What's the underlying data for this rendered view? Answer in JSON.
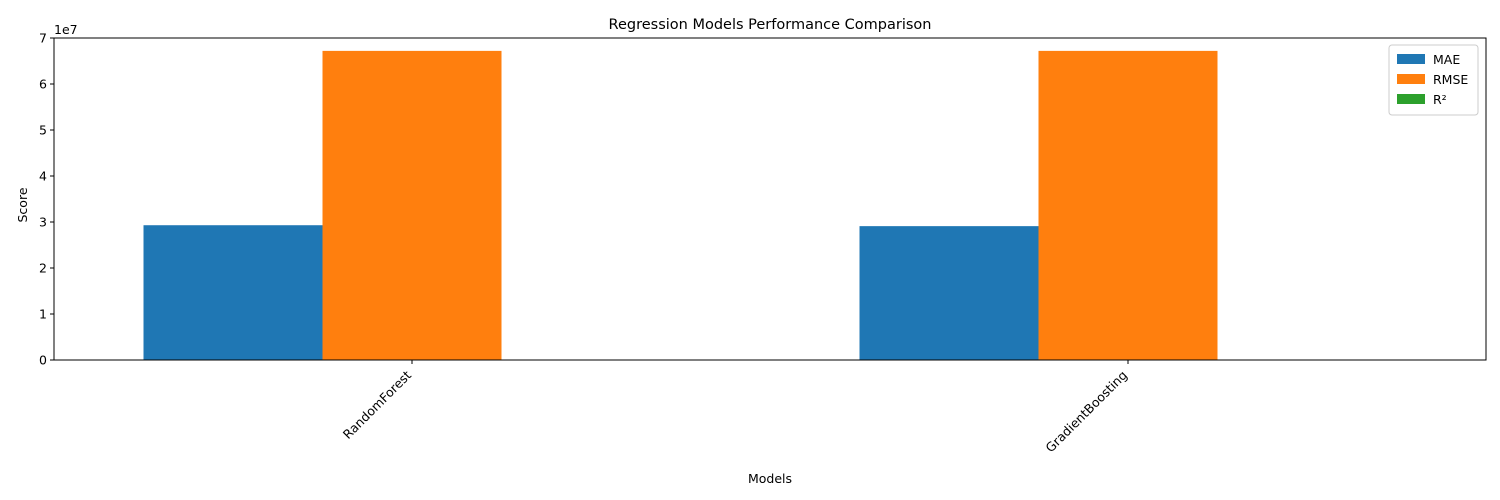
{
  "chart_data": {
    "type": "bar",
    "title": "Regression Models Performance Comparison",
    "xlabel": "Models",
    "ylabel": "Score",
    "y_offset_label": "1e7",
    "y_scale": 10000000,
    "categories": [
      "RandomForest",
      "GradientBoosting"
    ],
    "series": [
      {
        "name": "MAE",
        "color": "#1f77b4",
        "values": [
          29300000,
          29100000
        ]
      },
      {
        "name": "RMSE",
        "color": "#ff7f0e",
        "values": [
          67200000,
          67200000
        ]
      },
      {
        "name": "R²",
        "color": "#2ca02c",
        "values": [
          0.35,
          0.36
        ]
      }
    ],
    "ylim": [
      0,
      70000000
    ],
    "yticks": [
      0,
      10000000,
      20000000,
      30000000,
      40000000,
      50000000,
      60000000,
      70000000
    ],
    "ytick_labels": [
      "0",
      "1",
      "2",
      "3",
      "4",
      "5",
      "6",
      "7"
    ],
    "xtick_rotation": 45,
    "grid": false,
    "legend_position": "top-right"
  }
}
